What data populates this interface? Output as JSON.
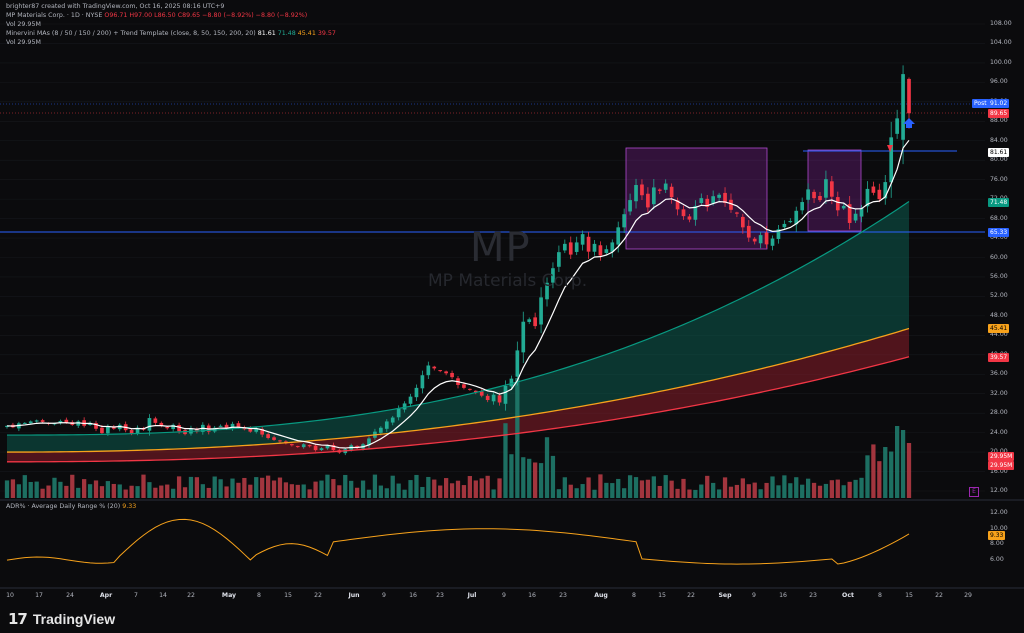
{
  "header": {
    "author_line": "brighter87 created with TradingView.com, Oct 16, 2025 08:16 UTC+9",
    "symbol_line_prefix": "MP Materials Corp. · 1D · NYSE",
    "ohlc": {
      "o": "O96.71",
      "h": "H97.00",
      "l": "L86.50",
      "c": "C89.65",
      "chg": "−8.80 (−8.92%)",
      "chg2": "−8.80 (−8.92%)"
    },
    "vol_line": "Vol 29.95M",
    "ma_line_prefix": "Minervini MAs (8 / 50 / 150 / 200) + Trend Template (close, 8, 50, 150, 200, 20)",
    "ma_vals": {
      "ema8": "81.61",
      "sma50": "71.48",
      "sma150": "45.41",
      "sma200": "39.57"
    },
    "vol_line2": "Vol 29.95M"
  },
  "watermark": {
    "ticker": "MP",
    "name": "MP Materials Corp."
  },
  "adr_label": {
    "prefix": "ADR% · Average Daily Range % (20)",
    "value": "9.33"
  },
  "price_labels": {
    "post": "Post",
    "post_value": "91.02",
    "last": "89.65",
    "ema8": "81.61",
    "sma50": "71.48",
    "level": "65.33",
    "sma150": "45.41",
    "sma200": "39.57",
    "vol1": "29.95M",
    "vol2": "29.95M",
    "adr": "9.33"
  },
  "y_axis": [
    "108.00",
    "104.00",
    "100.00",
    "96.00",
    "92.00",
    "88.00",
    "84.00",
    "80.00",
    "76.00",
    "72.00",
    "68.00",
    "64.00",
    "60.00",
    "56.00",
    "52.00",
    "48.00",
    "44.00",
    "40.00",
    "36.00",
    "32.00",
    "28.00",
    "24.00",
    "20.00",
    "16.00",
    "12.00"
  ],
  "adr_axis": [
    "12.00",
    "10.00",
    "8.00",
    "6.00"
  ],
  "x_axis": [
    {
      "t": "10",
      "b": false
    },
    {
      "t": "17",
      "b": false
    },
    {
      "t": "24",
      "b": false
    },
    {
      "t": "Apr",
      "b": true
    },
    {
      "t": "7",
      "b": false
    },
    {
      "t": "14",
      "b": false
    },
    {
      "t": "22",
      "b": false
    },
    {
      "t": "May",
      "b": true
    },
    {
      "t": "8",
      "b": false
    },
    {
      "t": "15",
      "b": false
    },
    {
      "t": "22",
      "b": false
    },
    {
      "t": "Jun",
      "b": true
    },
    {
      "t": "9",
      "b": false
    },
    {
      "t": "16",
      "b": false
    },
    {
      "t": "23",
      "b": false
    },
    {
      "t": "Jul",
      "b": true
    },
    {
      "t": "9",
      "b": false
    },
    {
      "t": "16",
      "b": false
    },
    {
      "t": "23",
      "b": false
    },
    {
      "t": "Aug",
      "b": true
    },
    {
      "t": "8",
      "b": false
    },
    {
      "t": "15",
      "b": false
    },
    {
      "t": "22",
      "b": false
    },
    {
      "t": "Sep",
      "b": true
    },
    {
      "t": "9",
      "b": false
    },
    {
      "t": "16",
      "b": false
    },
    {
      "t": "23",
      "b": false
    },
    {
      "t": "Oct",
      "b": true
    },
    {
      "t": "8",
      "b": false
    },
    {
      "t": "15",
      "b": false
    },
    {
      "t": "22",
      "b": false
    },
    {
      "t": "29",
      "b": false
    }
  ],
  "logo_text": "TradingView",
  "colors": {
    "up": "#22ab94",
    "down": "#f23645",
    "ema8": "#ffffff",
    "sma50": "#089981",
    "sma150": "#f7a21b",
    "sma200": "#f23645",
    "box": "#9c27b0",
    "hline": "#2962ff",
    "adr": "#f7a21b",
    "bg": "#0b0b0d"
  },
  "chart_data": {
    "type": "candlestick",
    "title": "MP Materials Corp. · 1D · NYSE",
    "ylim": [
      10,
      110
    ],
    "closes": [
      25.4,
      25.1,
      25.9,
      26.0,
      26.3,
      26.5,
      26.2,
      25.8,
      25.9,
      26.4,
      26.0,
      25.6,
      26.3,
      25.4,
      26.0,
      24.8,
      23.9,
      25.2,
      24.8,
      25.6,
      24.5,
      23.8,
      25.0,
      24.6,
      27.0,
      26.0,
      25.4,
      24.9,
      25.6,
      24.3,
      23.7,
      24.9,
      24.2,
      25.6,
      24.2,
      25.0,
      25.4,
      24.8,
      25.8,
      25.1,
      24.7,
      24.2,
      24.9,
      23.6,
      22.9,
      22.5,
      22.2,
      21.8,
      21.4,
      21.1,
      21.6,
      21.2,
      20.4,
      20.8,
      21.3,
      20.4,
      19.9,
      20.6,
      21.4,
      20.9,
      21.6,
      22.8,
      24.2,
      25.0,
      26.3,
      27.1,
      28.9,
      30.0,
      31.4,
      33.2,
      35.8,
      37.8,
      37.2,
      36.8,
      36.2,
      35.4,
      33.8,
      33.2,
      32.9,
      32.3,
      31.6,
      30.7,
      31.8,
      30.2,
      33.6,
      35.1,
      40.9,
      46.8,
      47.3,
      45.9,
      51.8,
      54.8,
      57.8,
      61.1,
      62.8,
      60.6,
      63.1,
      64.8,
      61.2,
      62.8,
      60.4,
      61.7,
      63.1,
      66.2,
      68.9,
      71.8,
      74.9,
      72.8,
      70.3,
      74.4,
      73.7,
      75.2,
      72.4,
      69.9,
      68.5,
      67.8,
      70.6,
      72.2,
      70.4,
      72.6,
      72.9,
      71.2,
      69.8,
      69.0,
      66.2,
      64.1,
      63.3,
      64.6,
      62.7,
      63.9,
      65.8,
      66.9,
      67.5,
      69.6,
      71.4,
      74.0,
      72.2,
      71.8,
      76.1,
      72.5,
      69.7,
      70.6,
      67.1,
      69.0,
      70.2,
      74.1,
      73.3,
      72.0,
      75.5,
      84.7,
      88.6,
      97.7,
      89.65
    ]
  }
}
